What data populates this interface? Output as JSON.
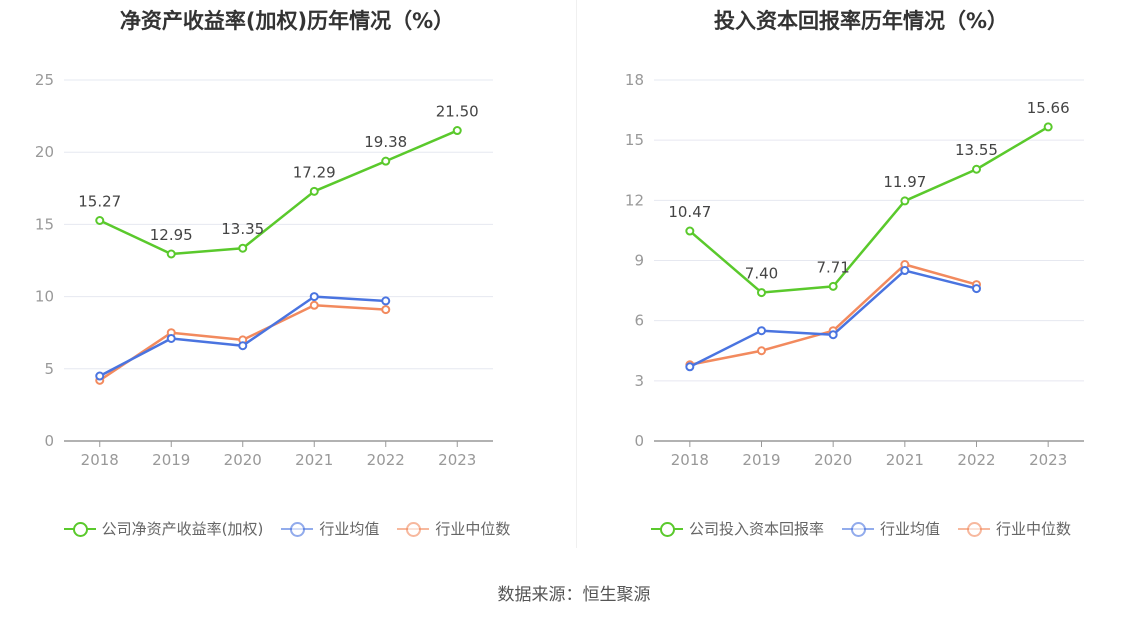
{
  "source_text": "数据来源：恒生聚源",
  "chart_data": [
    {
      "type": "line",
      "title": "净资产收益率(加权)历年情况（%）",
      "categories": [
        "2018",
        "2019",
        "2020",
        "2021",
        "2022",
        "2023"
      ],
      "ylim": [
        0,
        25
      ],
      "yticks": [
        0,
        5,
        10,
        15,
        20,
        25
      ],
      "grid": true,
      "legend_position": "bottom",
      "series": [
        {
          "name": "公司净资产收益率(加权)",
          "color": "#5ac92c",
          "values": [
            15.27,
            12.95,
            13.35,
            17.29,
            19.38,
            21.5
          ],
          "labels": [
            "15.27",
            "12.95",
            "13.35",
            "17.29",
            "19.38",
            "21.50"
          ]
        },
        {
          "name": "行业均值",
          "color": "#4a74e0",
          "values": [
            4.5,
            7.1,
            6.6,
            10.0,
            9.7,
            null
          ]
        },
        {
          "name": "行业中位数",
          "color": "#f28a5e",
          "values": [
            4.2,
            7.5,
            7.0,
            9.4,
            9.1,
            null
          ]
        }
      ]
    },
    {
      "type": "line",
      "title": "投入资本回报率历年情况（%）",
      "categories": [
        "2018",
        "2019",
        "2020",
        "2021",
        "2022",
        "2023"
      ],
      "ylim": [
        0,
        18
      ],
      "yticks": [
        0,
        3,
        6,
        9,
        12,
        15,
        18
      ],
      "grid": true,
      "legend_position": "bottom",
      "series": [
        {
          "name": "公司投入资本回报率",
          "color": "#5ac92c",
          "values": [
            10.47,
            7.4,
            7.71,
            11.97,
            13.55,
            15.66
          ],
          "labels": [
            "10.47",
            "7.40",
            "7.71",
            "11.97",
            "13.55",
            "15.66"
          ]
        },
        {
          "name": "行业均值",
          "color": "#4a74e0",
          "values": [
            3.7,
            5.5,
            5.3,
            8.5,
            7.6,
            null
          ]
        },
        {
          "name": "行业中位数",
          "color": "#f28a5e",
          "values": [
            3.8,
            4.5,
            5.5,
            8.8,
            7.8,
            null
          ]
        }
      ]
    }
  ]
}
